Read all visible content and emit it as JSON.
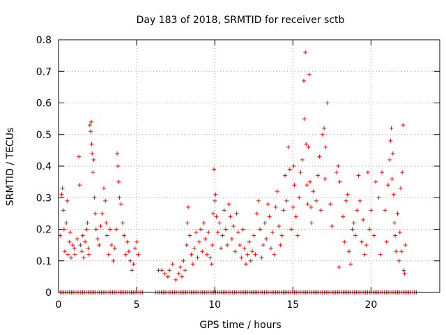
{
  "chart_data": {
    "type": "scatter",
    "title": "Day 183 of 2018, SRMTID for receiver sctb",
    "xlabel": "GPS time / hours",
    "ylabel": "SRMTID / TECUs",
    "xlim": [
      0,
      24.4
    ],
    "ylim": [
      0,
      0.8
    ],
    "xticks": [
      0,
      5,
      10,
      15,
      20
    ],
    "yticks": [
      0,
      0.1,
      0.2,
      0.3,
      0.4,
      0.5,
      0.6,
      0.7,
      0.8
    ],
    "ytick_labels": [
      "0",
      "0.1",
      "0.2",
      "0.3",
      "0.4",
      "0.5",
      "0.6",
      "0.7",
      "0.8"
    ],
    "grid": true,
    "marker": "+",
    "marker_color": "#ff0000",
    "series": [
      {
        "name": "SRMTID",
        "points": [
          [
            0.1,
            0.18
          ],
          [
            0.2,
            0.31
          ],
          [
            0.25,
            0.33
          ],
          [
            0.3,
            0.26
          ],
          [
            0.35,
            0.2
          ],
          [
            0.4,
            0.13
          ],
          [
            0.5,
            0.22
          ],
          [
            0.55,
            0.29
          ],
          [
            0.6,
            0.12
          ],
          [
            0.7,
            0.16
          ],
          [
            0.75,
            0.19
          ],
          [
            0.8,
            0.11
          ],
          [
            0.9,
            0.15
          ],
          [
            1.0,
            0.14
          ],
          [
            1.05,
            0.12
          ],
          [
            1.2,
            0.17
          ],
          [
            1.3,
            0.43
          ],
          [
            1.35,
            0.34
          ],
          [
            1.4,
            0.15
          ],
          [
            1.5,
            0.13
          ],
          [
            1.55,
            0.18
          ],
          [
            1.6,
            0.11
          ],
          [
            1.7,
            0.16
          ],
          [
            1.8,
            0.2
          ],
          [
            1.85,
            0.22
          ],
          [
            1.9,
            0.14
          ],
          [
            1.95,
            0.12
          ],
          [
            2.0,
            0.53
          ],
          [
            2.05,
            0.51
          ],
          [
            2.1,
            0.54
          ],
          [
            2.12,
            0.47
          ],
          [
            2.15,
            0.44
          ],
          [
            2.2,
            0.38
          ],
          [
            2.25,
            0.42
          ],
          [
            2.3,
            0.3
          ],
          [
            2.35,
            0.25
          ],
          [
            2.4,
            0.2
          ],
          [
            2.5,
            0.17
          ],
          [
            2.6,
            0.15
          ],
          [
            2.7,
            0.21
          ],
          [
            2.8,
            0.25
          ],
          [
            2.9,
            0.33
          ],
          [
            3.0,
            0.29
          ],
          [
            3.05,
            0.22
          ],
          [
            3.1,
            0.18
          ],
          [
            3.2,
            0.12
          ],
          [
            3.3,
            0.2
          ],
          [
            3.4,
            0.15
          ],
          [
            3.5,
            0.1
          ],
          [
            3.6,
            0.14
          ],
          [
            3.7,
            0.2
          ],
          [
            3.75,
            0.44
          ],
          [
            3.8,
            0.4
          ],
          [
            3.85,
            0.35
          ],
          [
            3.9,
            0.3
          ],
          [
            4.0,
            0.28
          ],
          [
            4.1,
            0.22
          ],
          [
            4.2,
            0.18
          ],
          [
            4.3,
            0.12
          ],
          [
            4.4,
            0.16
          ],
          [
            4.5,
            0.13
          ],
          [
            4.6,
            0.1
          ],
          [
            4.7,
            0.07
          ],
          [
            4.8,
            0.09
          ],
          [
            4.9,
            0.14
          ],
          [
            5.0,
            0.16
          ],
          [
            5.1,
            0.12
          ],
          [
            6.4,
            0.07
          ],
          [
            6.6,
            0.07
          ],
          [
            6.8,
            0.06
          ],
          [
            7.0,
            0.05
          ],
          [
            7.1,
            0.07
          ],
          [
            7.3,
            0.09
          ],
          [
            7.5,
            0.04
          ],
          [
            7.7,
            0.06
          ],
          [
            7.8,
            0.08
          ],
          [
            7.9,
            0.05
          ],
          [
            8.0,
            0.1
          ],
          [
            8.1,
            0.07
          ],
          [
            8.2,
            0.15
          ],
          [
            8.25,
            0.22
          ],
          [
            8.3,
            0.27
          ],
          [
            8.4,
            0.18
          ],
          [
            8.5,
            0.12
          ],
          [
            8.6,
            0.09
          ],
          [
            8.7,
            0.14
          ],
          [
            8.8,
            0.19
          ],
          [
            8.9,
            0.11
          ],
          [
            9.0,
            0.16
          ],
          [
            9.1,
            0.2
          ],
          [
            9.2,
            0.13
          ],
          [
            9.3,
            0.22
          ],
          [
            9.4,
            0.17
          ],
          [
            9.5,
            0.12
          ],
          [
            9.6,
            0.19
          ],
          [
            9.7,
            0.11
          ],
          [
            9.8,
            0.09
          ],
          [
            9.85,
            0.15
          ],
          [
            9.9,
            0.25
          ],
          [
            9.95,
            0.39
          ],
          [
            10.0,
            0.29
          ],
          [
            10.05,
            0.31
          ],
          [
            10.1,
            0.24
          ],
          [
            10.2,
            0.19
          ],
          [
            10.3,
            0.22
          ],
          [
            10.4,
            0.14
          ],
          [
            10.5,
            0.18
          ],
          [
            10.6,
            0.26
          ],
          [
            10.7,
            0.2
          ],
          [
            10.8,
            0.15
          ],
          [
            10.9,
            0.28
          ],
          [
            11.0,
            0.24
          ],
          [
            11.1,
            0.17
          ],
          [
            11.2,
            0.21
          ],
          [
            11.3,
            0.13
          ],
          [
            11.4,
            0.25
          ],
          [
            11.5,
            0.19
          ],
          [
            11.6,
            0.15
          ],
          [
            11.7,
            0.11
          ],
          [
            11.8,
            0.2
          ],
          [
            11.9,
            0.14
          ],
          [
            12.0,
            0.09
          ],
          [
            12.1,
            0.12
          ],
          [
            12.2,
            0.16
          ],
          [
            12.3,
            0.1
          ],
          [
            12.4,
            0.13
          ],
          [
            12.5,
            0.18
          ],
          [
            12.6,
            0.12
          ],
          [
            12.7,
            0.25
          ],
          [
            12.8,
            0.29
          ],
          [
            12.9,
            0.2
          ],
          [
            13.0,
            0.11
          ],
          [
            13.1,
            0.15
          ],
          [
            13.2,
            0.22
          ],
          [
            13.3,
            0.17
          ],
          [
            13.4,
            0.28
          ],
          [
            13.5,
            0.24
          ],
          [
            13.6,
            0.14
          ],
          [
            13.7,
            0.19
          ],
          [
            13.8,
            0.12
          ],
          [
            13.9,
            0.27
          ],
          [
            14.0,
            0.32
          ],
          [
            14.1,
            0.21
          ],
          [
            14.2,
            0.15
          ],
          [
            14.3,
            0.18
          ],
          [
            14.4,
            0.26
          ],
          [
            14.5,
            0.37
          ],
          [
            14.6,
            0.29
          ],
          [
            14.7,
            0.46
          ],
          [
            14.8,
            0.39
          ],
          [
            14.9,
            0.2
          ],
          [
            15.0,
            0.27
          ],
          [
            15.05,
            0.4
          ],
          [
            15.1,
            0.34
          ],
          [
            15.2,
            0.24
          ],
          [
            15.3,
            0.18
          ],
          [
            15.4,
            0.3
          ],
          [
            15.5,
            0.38
          ],
          [
            15.6,
            0.42
          ],
          [
            15.7,
            0.67
          ],
          [
            15.75,
            0.55
          ],
          [
            15.8,
            0.76
          ],
          [
            15.85,
            0.47
          ],
          [
            15.9,
            0.34
          ],
          [
            15.95,
            0.28
          ],
          [
            16.0,
            0.46
          ],
          [
            16.05,
            0.69
          ],
          [
            16.1,
            0.35
          ],
          [
            16.15,
            0.27
          ],
          [
            16.2,
            0.22
          ],
          [
            16.3,
            0.32
          ],
          [
            16.5,
            0.29
          ],
          [
            16.6,
            0.37
          ],
          [
            16.7,
            0.43
          ],
          [
            16.8,
            0.26
          ],
          [
            16.9,
            0.5
          ],
          [
            17.0,
            0.52
          ],
          [
            17.05,
            0.36
          ],
          [
            17.1,
            0.46
          ],
          [
            17.2,
            0.6
          ],
          [
            17.4,
            0.28
          ],
          [
            17.5,
            0.21
          ],
          [
            17.8,
            0.38
          ],
          [
            17.9,
            0.4
          ],
          [
            17.95,
            0.08
          ],
          [
            18.0,
            0.35
          ],
          [
            18.2,
            0.24
          ],
          [
            18.3,
            0.16
          ],
          [
            18.4,
            0.29
          ],
          [
            18.5,
            0.31
          ],
          [
            18.6,
            0.13
          ],
          [
            18.7,
            0.09
          ],
          [
            18.8,
            0.2
          ],
          [
            18.9,
            0.22
          ],
          [
            19.0,
            0.18
          ],
          [
            19.1,
            0.26
          ],
          [
            19.2,
            0.37
          ],
          [
            19.3,
            0.29
          ],
          [
            19.4,
            0.16
          ],
          [
            19.5,
            0.23
          ],
          [
            19.6,
            0.12
          ],
          [
            19.7,
            0.15
          ],
          [
            19.8,
            0.38
          ],
          [
            19.9,
            0.2
          ],
          [
            20.0,
            0.26
          ],
          [
            20.2,
            0.18
          ],
          [
            20.3,
            0.35
          ],
          [
            20.5,
            0.3
          ],
          [
            20.6,
            0.12
          ],
          [
            20.7,
            0.38
          ],
          [
            20.9,
            0.26
          ],
          [
            21.0,
            0.16
          ],
          [
            21.1,
            0.34
          ],
          [
            21.2,
            0.42
          ],
          [
            21.25,
            0.48
          ],
          [
            21.3,
            0.52
          ],
          [
            21.35,
            0.36
          ],
          [
            21.4,
            0.44
          ],
          [
            21.45,
            0.31
          ],
          [
            21.5,
            0.22
          ],
          [
            21.55,
            0.18
          ],
          [
            21.6,
            0.13
          ],
          [
            21.7,
            0.25
          ],
          [
            21.8,
            0.1
          ],
          [
            21.85,
            0.19
          ],
          [
            21.9,
            0.33
          ],
          [
            21.95,
            0.13
          ],
          [
            22.0,
            0.38
          ],
          [
            22.05,
            0.53
          ],
          [
            22.1,
            0.07
          ],
          [
            22.15,
            0.06
          ],
          [
            22.2,
            0.15
          ]
        ]
      }
    ],
    "zero_band": {
      "value": 0,
      "x_start": 0.1,
      "x_end": 23.0,
      "gaps": [
        [
          5.4,
          6.2
        ]
      ]
    }
  }
}
